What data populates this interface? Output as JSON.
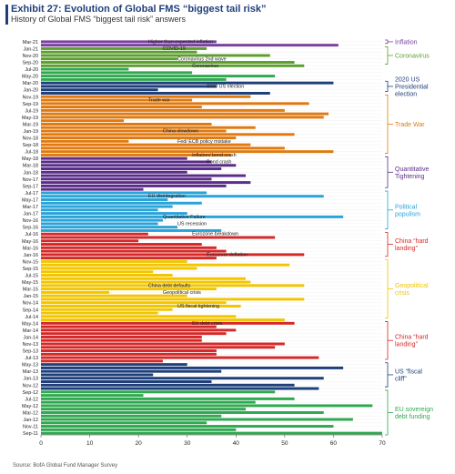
{
  "header": {
    "title": "Exhibit 27: Evolution of Global FMS “biggest tail risk”",
    "subtitle": "History of Global FMS “biggest tail risk” answers"
  },
  "source": "Source: BofA Global Fund Manager Survey",
  "chart_data": {
    "type": "bar",
    "orientation": "horizontal",
    "xlim": [
      0,
      70
    ],
    "xticks": [
      0,
      10,
      20,
      30,
      40,
      50,
      60,
      70
    ],
    "xlabel": "",
    "ylabel": "",
    "grid": false,
    "legend_position": "right",
    "row_order": "newest-at-top",
    "row_count": 115,
    "regimes": [
      {
        "label": "Inflation",
        "color": "#7a3fa0",
        "labeled_rows": [
          {
            "date": "Mar-21",
            "value": 36
          }
        ]
      },
      {
        "label": "Coronavirus",
        "color": "#5c9f2e",
        "labeled_rows": [
          {
            "date": "Jan-21",
            "value": 34
          },
          {
            "date": "Nov-20",
            "value": 47
          },
          {
            "date": "Sep-20",
            "value": 52
          }
        ]
      },
      {
        "label": "2020 US Presidential election",
        "color": "#1f3f7a",
        "labeled_rows": [
          {
            "date": "Mar-20",
            "value": 60
          },
          {
            "date": "Jan-20",
            "value": 24
          }
        ]
      },
      {
        "label": "Trade War",
        "color": "#e07a10",
        "labeled_rows": [
          {
            "date": "Nov-19",
            "value": 43
          },
          {
            "date": "Sep-19",
            "value": 55
          },
          {
            "date": "Jul-19",
            "value": 50
          },
          {
            "date": "May-19",
            "value": 58
          },
          {
            "date": "Mar-19",
            "value": 35
          },
          {
            "date": "Jan-19",
            "value": 38
          },
          {
            "date": "Nov-18",
            "value": 40
          },
          {
            "date": "Sep-18",
            "value": 43
          },
          {
            "date": "Jul-18",
            "value": 60
          }
        ]
      },
      {
        "label": "Quantitative Tightening",
        "color": "#5a2d8a",
        "labeled_rows": [
          {
            "date": "May-18",
            "value": 30
          },
          {
            "date": "Mar-18",
            "value": 40
          },
          {
            "date": "Jan-18",
            "value": 30
          },
          {
            "date": "Nov-17",
            "value": 35
          },
          {
            "date": "Sep-17",
            "value": 38
          }
        ]
      },
      {
        "label": "Political populism",
        "color": "#2aa3d8",
        "labeled_rows": [
          {
            "date": "Jul-17",
            "value": 34
          },
          {
            "date": "May-17",
            "value": 26
          },
          {
            "date": "Mar-17",
            "value": 27
          },
          {
            "date": "Jan-17",
            "value": 30
          },
          {
            "date": "Nov-16",
            "value": 25
          },
          {
            "date": "Sep-16",
            "value": 28
          }
        ]
      },
      {
        "label": "China “hard landing”",
        "color": "#d62828",
        "labeled_rows": [
          {
            "date": "Jul-16",
            "value": 22
          },
          {
            "date": "May-16",
            "value": 20
          },
          {
            "date": "Mar-16",
            "value": 36
          },
          {
            "date": "Jan-16",
            "value": 54
          }
        ]
      },
      {
        "label": "Geopolitical crisis",
        "color": "#f2c500",
        "labeled_rows": [
          {
            "date": "Nov-15",
            "value": 30
          },
          {
            "date": "Sep-15",
            "value": 32
          },
          {
            "date": "Jul-15",
            "value": 27
          },
          {
            "date": "May-15",
            "value": 43
          },
          {
            "date": "Mar-15",
            "value": 36
          },
          {
            "date": "Jan-15",
            "value": 30
          },
          {
            "date": "Nov-14",
            "value": 38
          },
          {
            "date": "Sep-14",
            "value": 27
          },
          {
            "date": "Jul-14",
            "value": 40
          }
        ]
      },
      {
        "label": "China “hard landing”",
        "color": "#d62828",
        "labeled_rows": [
          {
            "date": "May-14",
            "value": 52
          },
          {
            "date": "Mar-14",
            "value": 40
          },
          {
            "date": "Jan-14",
            "value": 33
          },
          {
            "date": "Nov-13",
            "value": 50
          },
          {
            "date": "Sep-13",
            "value": 36
          },
          {
            "date": "Jul-13",
            "value": 57
          }
        ]
      },
      {
        "label": "US “fiscal cliff”",
        "color": "#1f3f7a",
        "labeled_rows": [
          {
            "date": "May-13",
            "value": 30
          },
          {
            "date": "Mar-13",
            "value": 37
          },
          {
            "date": "Jan-13",
            "value": 58
          },
          {
            "date": "Nov-12",
            "value": 52
          }
        ]
      },
      {
        "label": "EU sovereign debt funding",
        "color": "#2fa84f",
        "labeled_rows": [
          {
            "date": "Sep-12",
            "value": 48
          },
          {
            "date": "Jul-12",
            "value": 52
          },
          {
            "date": "May-12",
            "value": 68
          },
          {
            "date": "Mar-12",
            "value": 58
          },
          {
            "date": "Jan-12",
            "value": 64
          },
          {
            "date": "Nov-11",
            "value": 60
          },
          {
            "date": "Sep-11",
            "value": 70
          }
        ]
      }
    ],
    "annotations": [
      "Higher than expected inflation",
      "COVID-19",
      "Coronavirus 2nd wave",
      "Coronavirus",
      "2020 US election",
      "Trade war",
      "China slowdown",
      "Fed/ ECB policy mistake",
      "Inflation/ bond crash",
      "Bond crash",
      "EU disintegration",
      "Quantitative Failure",
      "US recession",
      "Eurozone breakdown",
      "Eurozone deflation",
      "China debt defaults",
      "Geopolitical crisis",
      "US fiscal tightening",
      "EU debt crisis"
    ]
  }
}
